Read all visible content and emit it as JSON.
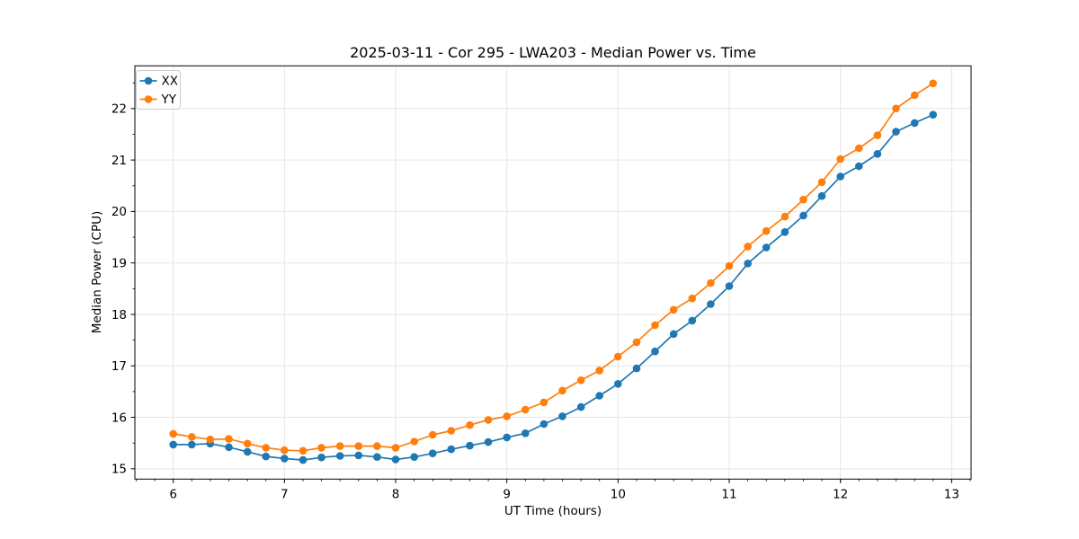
{
  "figure": {
    "title": "2025-03-11 - Cor 295 - LWA203 - Median Power vs. Time"
  },
  "chart_data": {
    "type": "line",
    "title": "2025-03-11 - Cor 295 - LWA203 - Median Power vs. Time",
    "xlabel": "UT Time (hours)",
    "ylabel": "Median Power (CPU)",
    "x": [
      6.0,
      6.167,
      6.333,
      6.5,
      6.667,
      6.833,
      7.0,
      7.167,
      7.333,
      7.5,
      7.667,
      7.833,
      8.0,
      8.167,
      8.333,
      8.5,
      8.667,
      8.833,
      9.0,
      9.167,
      9.333,
      9.5,
      9.667,
      9.833,
      10.0,
      10.167,
      10.333,
      10.5,
      10.667,
      10.833,
      11.0,
      11.167,
      11.333,
      11.5,
      11.667,
      11.833,
      12.0,
      12.167,
      12.333,
      12.5,
      12.667,
      12.833
    ],
    "series": [
      {
        "name": "XX",
        "color": "#1f77b4",
        "values": [
          15.47,
          15.47,
          15.49,
          15.42,
          15.33,
          15.24,
          15.2,
          15.17,
          15.22,
          15.25,
          15.26,
          15.23,
          15.18,
          15.23,
          15.3,
          15.38,
          15.45,
          15.52,
          15.61,
          15.69,
          15.87,
          16.02,
          16.2,
          16.42,
          16.65,
          16.95,
          17.28,
          17.62,
          17.88,
          18.2,
          18.55,
          18.99,
          19.3,
          19.6,
          19.92,
          20.3,
          20.68,
          20.88,
          21.12,
          21.55,
          21.72,
          21.88
        ]
      },
      {
        "name": "YY",
        "color": "#ff7f0e",
        "values": [
          15.68,
          15.62,
          15.57,
          15.58,
          15.49,
          15.41,
          15.36,
          15.35,
          15.41,
          15.44,
          15.44,
          15.44,
          15.41,
          15.53,
          15.66,
          15.74,
          15.85,
          15.95,
          16.02,
          16.15,
          16.29,
          16.52,
          16.72,
          16.91,
          17.18,
          17.46,
          17.79,
          18.09,
          18.31,
          18.61,
          18.94,
          19.32,
          19.62,
          19.9,
          20.23,
          20.57,
          21.02,
          21.23,
          21.48,
          22.0,
          22.26,
          22.49
        ]
      }
    ],
    "xlim": [
      5.655,
      13.175
    ],
    "ylim": [
      14.8,
      22.83
    ],
    "xticks": [
      6,
      7,
      8,
      9,
      10,
      11,
      12,
      13
    ],
    "yticks": [
      15,
      16,
      17,
      18,
      19,
      20,
      21,
      22
    ],
    "x_minor_step": 0.1666667,
    "y_minor_step": 0.5,
    "grid": "major",
    "grid_color": "#e5e5e5",
    "spine_color": "#000000",
    "background": "#ffffff",
    "legend_position": "upper-left",
    "marker": "o"
  }
}
